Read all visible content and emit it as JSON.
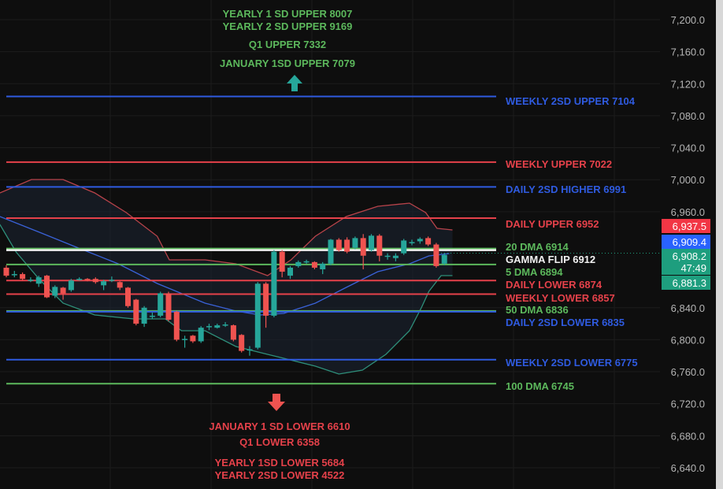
{
  "chart_data": {
    "type": "candlestick",
    "title": "",
    "ylim": [
      6620,
      7215
    ],
    "y_ticks": [
      "7,200.0",
      "7,160.0",
      "7,120.0",
      "7,080.0",
      "7,040.0",
      "7,000.0",
      "6,960.0",
      "6,840.0",
      "6,800.0",
      "6,760.0",
      "6,720.0",
      "6,680.0",
      "6,640.0"
    ],
    "y_tick_values": [
      7200,
      7160,
      7120,
      7080,
      7040,
      7000,
      6960,
      6840,
      6800,
      6760,
      6720,
      6680,
      6640
    ],
    "grid": true,
    "colors": {
      "up": "#26a69a",
      "down": "#ef5350",
      "red": "#e5414a",
      "green": "#5cb85c",
      "blue": "#2f5be0",
      "white": "#f2f2f2",
      "band_upper": "#b8434a",
      "band_mid": "#3a62d8",
      "band_lower": "#2e8f7a"
    },
    "candles": [
      [
        6890,
        6893,
        6878,
        6880
      ],
      [
        6882,
        6886,
        6878,
        6882
      ],
      [
        6882,
        6884,
        6874,
        6876
      ],
      [
        6875,
        6878,
        6872,
        6875
      ],
      [
        6870,
        6880,
        6866,
        6878
      ],
      [
        6880,
        6881,
        6852,
        6853
      ],
      [
        6855,
        6868,
        6852,
        6866
      ],
      [
        6865,
        6866,
        6850,
        6858
      ],
      [
        6862,
        6876,
        6860,
        6874
      ],
      [
        6875,
        6878,
        6874,
        6876
      ],
      [
        6876,
        6877,
        6873,
        6874
      ],
      [
        6876,
        6878,
        6870,
        6872
      ],
      [
        6868,
        6875,
        6862,
        6873
      ],
      [
        6875,
        6879,
        6872,
        6875
      ],
      [
        6872,
        6873,
        6862,
        6865
      ],
      [
        6865,
        6866,
        6840,
        6842
      ],
      [
        6850,
        6851,
        6818,
        6820
      ],
      [
        6820,
        6842,
        6816,
        6840
      ],
      [
        6830,
        6834,
        6826,
        6830
      ],
      [
        6830,
        6860,
        6828,
        6858
      ],
      [
        6858,
        6860,
        6823,
        6825
      ],
      [
        6835,
        6836,
        6798,
        6800
      ],
      [
        6800,
        6805,
        6790,
        6801
      ],
      [
        6805,
        6806,
        6796,
        6798
      ],
      [
        6798,
        6817,
        6796,
        6815
      ],
      [
        6816,
        6820,
        6812,
        6817
      ],
      [
        6815,
        6820,
        6814,
        6818
      ],
      [
        6818,
        6822,
        6816,
        6819
      ],
      [
        6818,
        6819,
        6798,
        6800
      ],
      [
        6806,
        6807,
        6784,
        6786
      ],
      [
        6787,
        6792,
        6780,
        6788
      ],
      [
        6790,
        6872,
        6788,
        6870
      ],
      [
        6870,
        6872,
        6815,
        6830
      ],
      [
        6830,
        6912,
        6828,
        6910
      ],
      [
        6910,
        6912,
        6878,
        6885
      ],
      [
        6880,
        6892,
        6876,
        6890
      ],
      [
        6892,
        6899,
        6890,
        6897
      ],
      [
        6898,
        6900,
        6895,
        6898
      ],
      [
        6897,
        6898,
        6888,
        6890
      ],
      [
        6888,
        6897,
        6882,
        6895
      ],
      [
        6895,
        6926,
        6893,
        6925
      ],
      [
        6925,
        6927,
        6910,
        6912
      ],
      [
        6925,
        6928,
        6908,
        6910
      ],
      [
        6915,
        6929,
        6913,
        6927
      ],
      [
        6927,
        6932,
        6888,
        6905
      ],
      [
        6912,
        6932,
        6910,
        6930
      ],
      [
        6930,
        6932,
        6898,
        6905
      ],
      [
        6905,
        6908,
        6900,
        6905
      ],
      [
        6902,
        6908,
        6898,
        6905
      ],
      [
        6908,
        6926,
        6906,
        6924
      ],
      [
        6922,
        6925,
        6918,
        6922
      ],
      [
        6923,
        6928,
        6920,
        6926
      ],
      [
        6927,
        6929,
        6917,
        6919
      ],
      [
        6919,
        6921,
        6890,
        6892
      ],
      [
        6895,
        6908,
        6893,
        6906
      ]
    ],
    "bollinger": {
      "upper": [
        [
          -0.8,
          6983.5
        ],
        [
          3.1,
          7000.2
        ],
        [
          7,
          7000.2
        ],
        [
          10.9,
          6983.5
        ],
        [
          14.8,
          6958.9
        ],
        [
          18.6,
          6929.3
        ],
        [
          20.1,
          6899.8
        ],
        [
          24.5,
          6899.8
        ],
        [
          28.3,
          6894.9
        ],
        [
          32.2,
          6880.1
        ],
        [
          35.1,
          6899.8
        ],
        [
          38.1,
          6929.3
        ],
        [
          41.9,
          6953.9
        ],
        [
          45.8,
          6966.7
        ],
        [
          49.7,
          6970.7
        ],
        [
          51.7,
          6958.9
        ],
        [
          53.1,
          6939.2
        ],
        [
          55,
          6937.2
        ]
      ],
      "middle": [
        [
          -0.8,
          6953.9
        ],
        [
          4.1,
          6934.3
        ],
        [
          8.9,
          6914.6
        ],
        [
          13.8,
          6894.9
        ],
        [
          18.6,
          6870.3
        ],
        [
          24.5,
          6845.7
        ],
        [
          28.3,
          6835.8
        ],
        [
          31.3,
          6830.9
        ],
        [
          34.2,
          6832.9
        ],
        [
          38.1,
          6845.7
        ],
        [
          41.9,
          6865.4
        ],
        [
          45.8,
          6885
        ],
        [
          49.7,
          6894.9
        ],
        [
          52.1,
          6904.7
        ],
        [
          54.6,
          6907.7
        ]
      ],
      "lower": [
        [
          -0.8,
          6944.1
        ],
        [
          1.2,
          6909.6
        ],
        [
          4.1,
          6875.2
        ],
        [
          7,
          6845.7
        ],
        [
          10.9,
          6830.9
        ],
        [
          15.7,
          6826
        ],
        [
          19.6,
          6826
        ],
        [
          21.6,
          6811.2
        ],
        [
          24.5,
          6811.2
        ],
        [
          28.3,
          6791.5
        ],
        [
          32.2,
          6781.7
        ],
        [
          34.2,
          6776.8
        ],
        [
          38.1,
          6766.9
        ],
        [
          41,
          6757.1
        ],
        [
          43.9,
          6762
        ],
        [
          46.8,
          6781.7
        ],
        [
          49.7,
          6811.2
        ],
        [
          51.2,
          6840.7
        ],
        [
          52.1,
          6860.4
        ],
        [
          53.6,
          6880.1
        ],
        [
          55,
          6880.1
        ]
      ]
    },
    "levels": [
      {
        "label": "WEEKLY 2SD UPPER 7104",
        "value": 7104,
        "color": "blue"
      },
      {
        "label": "WEEKLY UPPER 7022",
        "value": 7022,
        "color": "red"
      },
      {
        "label": "DAILY 2SD HIGHER 6991",
        "value": 6991,
        "color": "blue"
      },
      {
        "label": "DAILY UPPER 6952",
        "value": 6952,
        "color": "red"
      },
      {
        "label": "20 DMA 6914",
        "value": 6914,
        "color": "green"
      },
      {
        "label": "GAMMA FLIP 6912",
        "value": 6912,
        "color": "white"
      },
      {
        "label": "5 DMA 6894",
        "value": 6894,
        "color": "green"
      },
      {
        "label": "DAILY LOWER 6874",
        "value": 6874,
        "color": "red"
      },
      {
        "label": "WEEKLY LOWER 6857",
        "value": 6857,
        "color": "red"
      },
      {
        "label": "50 DMA 6836",
        "value": 6836,
        "color": "green"
      },
      {
        "label": "DAILY 2SD LOWER 6835",
        "value": 6835,
        "color": "blue"
      },
      {
        "label": "WEEKLY 2SD LOWER 6775",
        "value": 6775,
        "color": "blue"
      },
      {
        "label": "100 DMA 6745",
        "value": 6745,
        "color": "green"
      }
    ],
    "price_badges": [
      {
        "text": "6,937.5",
        "value": 6937.5,
        "color": "#f23645"
      },
      {
        "text": "6,909.4",
        "value": 6909.4,
        "color": "#2962ff"
      },
      {
        "text": "6,908.2",
        "sub": "47:49",
        "value": 6908.2,
        "color": "#1e9e7e"
      },
      {
        "text": "6,881.3",
        "value": 6881.3,
        "color": "#1e9e7e"
      }
    ],
    "upper_annotations": [
      "YEARLY 1 SD UPPER 8007",
      "YEARLY 2 SD UPPER 9169",
      "Q1 UPPER 7332",
      "JANUARY 1SD UPPER 7079"
    ],
    "lower_annotations": [
      "JANUARY 1 SD LOWER 6610",
      "Q1 LOWER 6358",
      "YEARLY 1SD LOWER 5684",
      "YEARLY 2SD LOWER 4522"
    ],
    "arrow_up": "arrow-up-icon",
    "arrow_down": "arrow-down-icon"
  }
}
